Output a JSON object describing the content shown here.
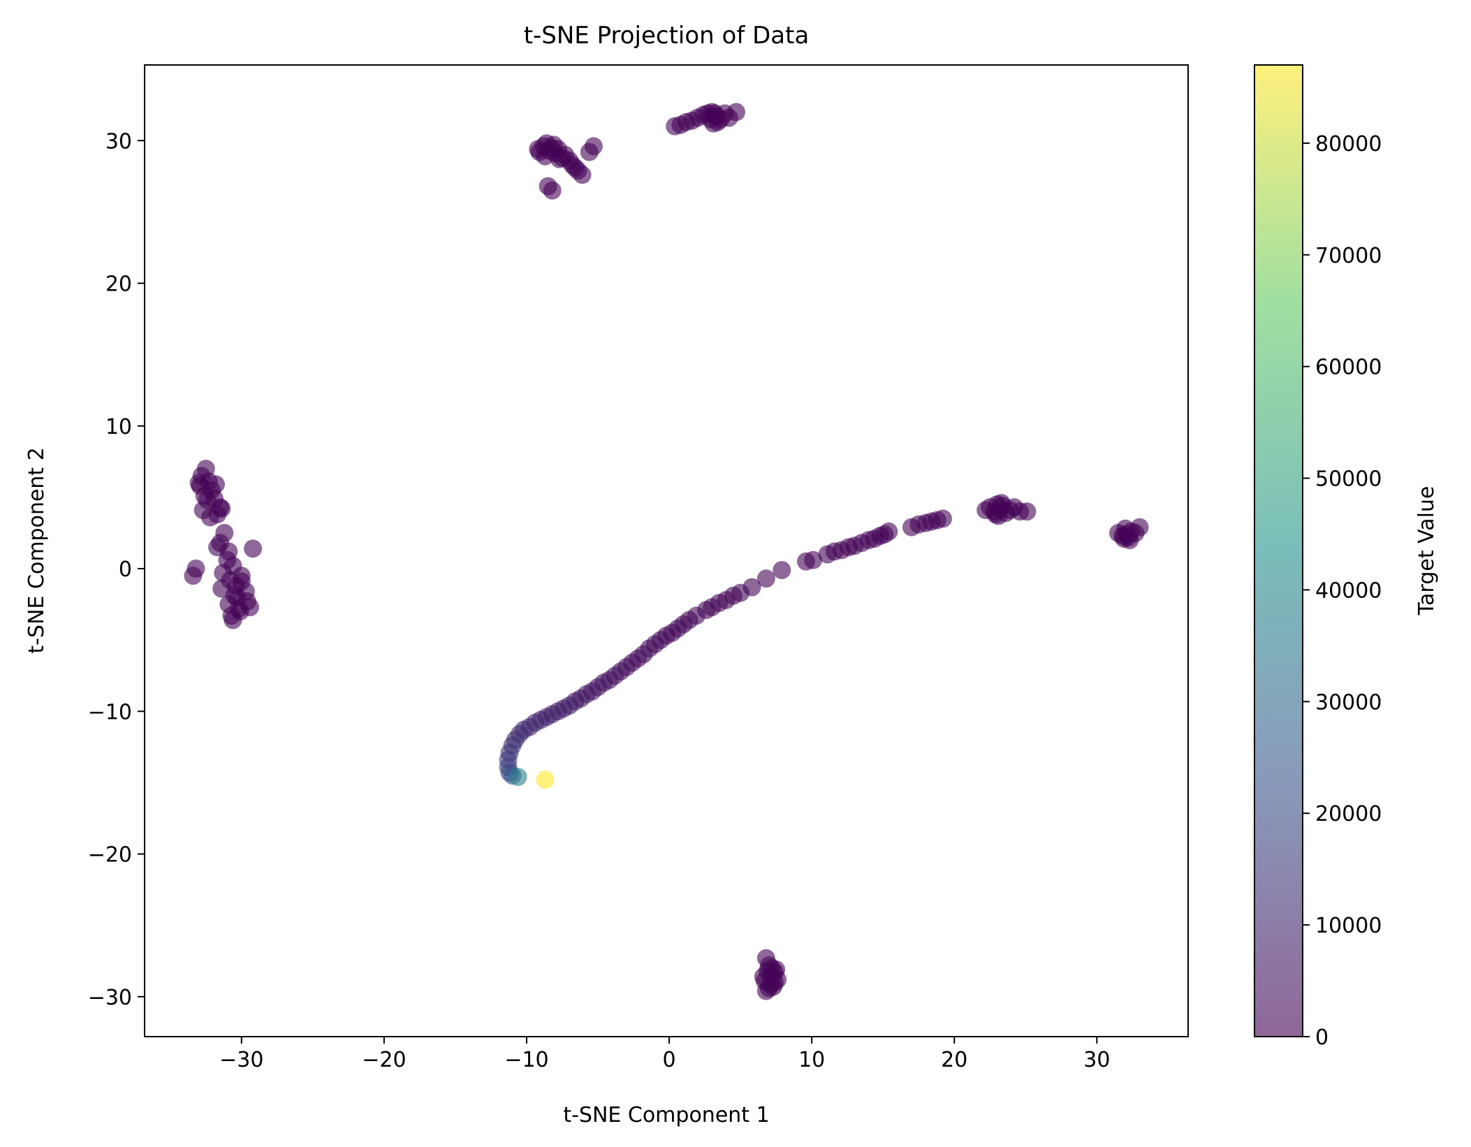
{
  "chart_data": {
    "type": "scatter",
    "title": "t-SNE Projection of Data",
    "xlabel": "t-SNE Component 1",
    "ylabel": "t-SNE Component 2",
    "xlim": [
      -36.8,
      36.4
    ],
    "ylim": [
      -32.8,
      35.3
    ],
    "xticks": [
      -30,
      -20,
      -10,
      0,
      10,
      20,
      30
    ],
    "xtick_labels": [
      "−30",
      "−20",
      "−10",
      "0",
      "10",
      "20",
      "30"
    ],
    "yticks": [
      -30,
      -20,
      -10,
      0,
      10,
      20,
      30
    ],
    "ytick_labels": [
      "−30",
      "−20",
      "−10",
      "0",
      "10",
      "20",
      "30"
    ],
    "grid": false,
    "legend": "none",
    "marker_alpha": 0.6,
    "colormap": "viridis",
    "colormap_stops": [
      "#440154",
      "#3b528b",
      "#21918c",
      "#5ec962",
      "#fde725"
    ],
    "colorbar": {
      "label": "Target Value",
      "range": [
        0,
        87000
      ],
      "ticks": [
        0,
        10000,
        20000,
        30000,
        40000,
        50000,
        60000,
        70000,
        80000
      ],
      "tick_labels": [
        "0",
        "10000",
        "20000",
        "30000",
        "40000",
        "50000",
        "60000",
        "70000",
        "80000"
      ]
    },
    "series": [
      {
        "x": [
          -32.8,
          -32.5,
          -32.3,
          -32.9,
          -32.1,
          -31.8,
          -32.4,
          -31.5,
          -31.9,
          -32.7,
          -31.7,
          -33.0,
          -32.6,
          -31.4,
          -32.2
        ],
        "y": [
          6.5,
          7.0,
          6.1,
          5.8,
          5.5,
          5.9,
          4.8,
          4.3,
          4.9,
          4.1,
          3.8,
          6.0,
          5.1,
          4.2,
          3.6
        ],
        "c": [
          500,
          800,
          1200,
          400,
          900,
          600,
          1000,
          700,
          300,
          1100,
          800,
          500,
          900,
          600,
          400
        ]
      },
      {
        "x": [
          -31.2,
          -31.5,
          -30.9,
          -31.7,
          -31.0,
          -30.6,
          -31.3,
          -30.8,
          -30.4,
          -30.0,
          -29.7,
          -30.3,
          -30.9,
          -30.5,
          -29.6,
          -30.2,
          -30.7,
          -31.4,
          -30.1,
          -29.4,
          -30.6,
          -30.0,
          -29.2,
          -33.2,
          -33.4
        ],
        "y": [
          2.5,
          1.8,
          1.2,
          1.5,
          0.6,
          0.2,
          -0.3,
          -0.8,
          -1.2,
          -0.5,
          -1.6,
          -2.0,
          -2.5,
          -1.9,
          -2.3,
          -2.8,
          -3.3,
          -1.4,
          -3.0,
          -2.7,
          -3.6,
          -0.9,
          1.4,
          0.0,
          -0.5
        ],
        "c": [
          600,
          900,
          700,
          1100,
          800,
          500,
          1200,
          900,
          600,
          700,
          1000,
          800,
          500,
          900,
          700,
          600,
          1100,
          800,
          500,
          900,
          700,
          600,
          400,
          800,
          500
        ]
      },
      {
        "x": [
          -8.8,
          -9.1,
          -8.6,
          -8.3,
          -8.0,
          -7.8,
          -7.5,
          -7.3,
          -7.0,
          -6.8,
          -6.4,
          -6.1,
          -5.6,
          -5.3,
          -8.4,
          -8.7,
          -9.2,
          -7.7,
          -8.1,
          -6.6,
          -8.5,
          -8.2
        ],
        "y": [
          29.6,
          29.2,
          29.8,
          29.5,
          29.1,
          29.4,
          28.8,
          29.0,
          28.6,
          28.3,
          27.9,
          27.6,
          29.2,
          29.6,
          29.3,
          28.9,
          29.4,
          28.7,
          29.7,
          28.1,
          26.8,
          26.5
        ],
        "c": [
          500,
          900,
          700,
          1100,
          600,
          800,
          1000,
          500,
          700,
          900,
          600,
          800,
          500,
          700,
          1000,
          600,
          800,
          900,
          500,
          700,
          600,
          400
        ]
      },
      {
        "x": [
          0.4,
          0.8,
          1.2,
          1.6,
          2.0,
          2.4,
          2.7,
          3.0,
          3.3,
          3.6,
          3.9,
          4.2,
          4.7,
          3.1,
          2.9,
          3.4,
          3.2
        ],
        "y": [
          31.0,
          31.1,
          31.3,
          31.4,
          31.6,
          31.8,
          31.9,
          32.0,
          31.7,
          31.5,
          31.9,
          31.6,
          32.0,
          31.2,
          31.5,
          31.3,
          31.9
        ],
        "c": [
          600,
          800,
          500,
          900,
          700,
          1000,
          600,
          800,
          500,
          900,
          700,
          600,
          400,
          800,
          700,
          500,
          900
        ]
      },
      {
        "x": [
          6.8,
          7.0,
          6.9,
          7.2,
          7.4,
          7.6,
          6.7,
          7.1,
          7.3,
          6.6,
          7.5,
          6.8,
          7.0,
          7.2,
          7.4
        ],
        "y": [
          -27.3,
          -27.8,
          -28.2,
          -28.5,
          -28.3,
          -28.8,
          -28.9,
          -29.1,
          -29.3,
          -28.6,
          -28.1,
          -29.6,
          -29.4,
          -28.0,
          -29.0
        ],
        "c": [
          700,
          500,
          900,
          600,
          800,
          1000,
          500,
          700,
          900,
          600,
          800,
          500,
          700,
          1100,
          600
        ]
      },
      {
        "x": [
          22.2,
          22.5,
          22.8,
          23.0,
          23.2,
          23.4,
          23.6,
          23.9,
          24.2,
          24.6,
          25.1,
          22.9,
          23.1,
          23.3
        ],
        "y": [
          4.1,
          4.3,
          4.0,
          4.5,
          4.2,
          4.4,
          3.9,
          4.1,
          4.3,
          4.0,
          4.0,
          3.8,
          3.7,
          4.6
        ],
        "c": [
          600,
          800,
          500,
          900,
          700,
          1000,
          600,
          800,
          500,
          700,
          400,
          800,
          600,
          900
        ]
      },
      {
        "x": [
          31.5,
          31.8,
          32.0,
          32.2,
          32.4,
          32.7,
          33.0,
          31.9,
          32.1,
          32.3
        ],
        "y": [
          2.5,
          2.3,
          2.8,
          2.2,
          2.6,
          2.5,
          2.9,
          2.1,
          2.4,
          2.0
        ],
        "c": [
          600,
          900,
          700,
          500,
          800,
          1000,
          600,
          700,
          500,
          800
        ]
      },
      {
        "x": [
          19.2,
          18.8,
          18.4,
          18.0,
          17.5,
          17.0,
          15.4,
          15.1,
          14.8,
          14.4,
          14.0,
          13.5,
          13.0,
          12.6,
          12.1,
          11.6,
          11.1,
          10.1,
          9.6,
          7.9,
          6.8,
          5.8,
          5.0,
          4.5,
          4.0,
          3.5,
          3.0,
          2.6,
          1.9,
          1.4,
          1.0,
          0.6,
          0.2,
          -0.2,
          -0.6,
          -1.0,
          -1.4,
          -1.8,
          -2.2,
          -2.6,
          -3.0,
          -3.4,
          -3.8,
          -4.2,
          -4.6,
          -5.0,
          -5.4,
          -5.8,
          -6.2,
          -6.6,
          -7.0,
          -7.4,
          -7.8,
          -8.2,
          -8.6,
          -9.0,
          -9.4,
          -9.8,
          -10.2,
          -10.5,
          -10.8,
          -11.0,
          -11.2,
          -11.3,
          -11.3,
          -11.2,
          -11.0,
          -10.6,
          -8.7
        ],
        "y": [
          3.5,
          3.4,
          3.3,
          3.2,
          3.1,
          2.9,
          2.6,
          2.4,
          2.3,
          2.1,
          2.0,
          1.8,
          1.6,
          1.5,
          1.3,
          1.2,
          1.0,
          0.6,
          0.5,
          -0.1,
          -0.7,
          -1.3,
          -1.7,
          -1.9,
          -2.2,
          -2.4,
          -2.7,
          -2.9,
          -3.3,
          -3.6,
          -3.9,
          -4.2,
          -4.5,
          -4.7,
          -5.0,
          -5.3,
          -5.6,
          -6.0,
          -6.3,
          -6.6,
          -6.9,
          -7.2,
          -7.5,
          -7.8,
          -8.0,
          -8.3,
          -8.6,
          -8.8,
          -9.1,
          -9.3,
          -9.6,
          -9.8,
          -10.0,
          -10.2,
          -10.4,
          -10.6,
          -10.8,
          -11.1,
          -11.3,
          -11.6,
          -12.0,
          -12.4,
          -12.9,
          -13.4,
          -13.9,
          -14.3,
          -14.5,
          -14.6,
          -14.8
        ],
        "c": [
          500,
          800,
          600,
          900,
          700,
          500,
          600,
          800,
          700,
          900,
          600,
          800,
          700,
          500,
          900,
          600,
          800,
          700,
          900,
          800,
          1000,
          900,
          1100,
          1000,
          1200,
          1100,
          1300,
          1200,
          1400,
          1500,
          1600,
          1700,
          1800,
          1900,
          2000,
          2200,
          2400,
          2600,
          2800,
          3000,
          3200,
          3500,
          3800,
          4100,
          4400,
          4700,
          5000,
          5400,
          5800,
          6200,
          6600,
          7000,
          7400,
          7800,
          8300,
          8800,
          9300,
          9800,
          10500,
          11200,
          12000,
          13000,
          14000,
          15500,
          17000,
          19000,
          22000,
          38000,
          87000
        ]
      }
    ]
  }
}
